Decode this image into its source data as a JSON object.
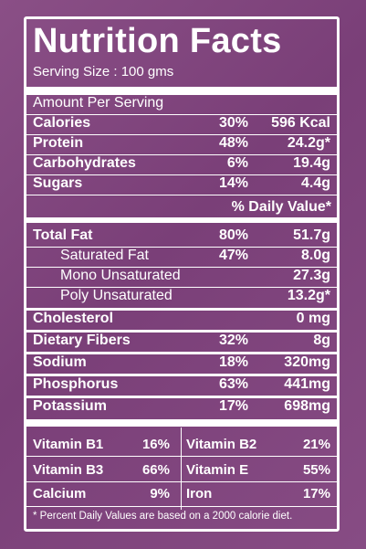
{
  "title": "Nutrition Facts",
  "serving_size": "Serving Size : 100 gms",
  "amount_per_serving": "Amount Per Serving",
  "daily_value_header": "% Daily Value*",
  "top_rows": [
    {
      "name": "Calories",
      "percent": "30%",
      "value": "596 Kcal"
    },
    {
      "name": "Protein",
      "percent": "48%",
      "value": "24.2g*"
    },
    {
      "name": "Carbohydrates",
      "percent": "6%",
      "value": "19.4g"
    },
    {
      "name": "Sugars",
      "percent": "14%",
      "value": "4.4g"
    }
  ],
  "fat_rows": [
    {
      "name": "Total Fat",
      "percent": "80%",
      "value": "51.7g"
    },
    {
      "name": "Saturated Fat",
      "percent": "47%",
      "value": "8.0g"
    },
    {
      "name": "Mono Unsaturated",
      "percent": "",
      "value": "27.3g"
    },
    {
      "name": "Poly Unsaturated",
      "percent": "",
      "value": "13.2g*"
    }
  ],
  "other_rows": [
    {
      "name": "Cholesterol",
      "percent": "",
      "value": "0 mg"
    },
    {
      "name": "Dietary Fibers",
      "percent": "32%",
      "value": "8g"
    },
    {
      "name": "Sodium",
      "percent": "18%",
      "value": "320mg"
    },
    {
      "name": "Phosphorus",
      "percent": "63%",
      "value": "441mg"
    },
    {
      "name": "Potassium",
      "percent": "17%",
      "value": "698mg"
    }
  ],
  "vitamins_left": [
    {
      "name": "Vitamin B1",
      "percent": "16%"
    },
    {
      "name": "Vitamin B3",
      "percent": "66%"
    },
    {
      "name": "Calcium",
      "percent": "9%"
    }
  ],
  "vitamins_right": [
    {
      "name": "Vitamin B2",
      "percent": "21%"
    },
    {
      "name": "Vitamin E",
      "percent": "55%"
    },
    {
      "name": "Iron",
      "percent": "17%"
    }
  ],
  "footnote": "* Percent Daily Values are based on a 2000 calorie diet."
}
